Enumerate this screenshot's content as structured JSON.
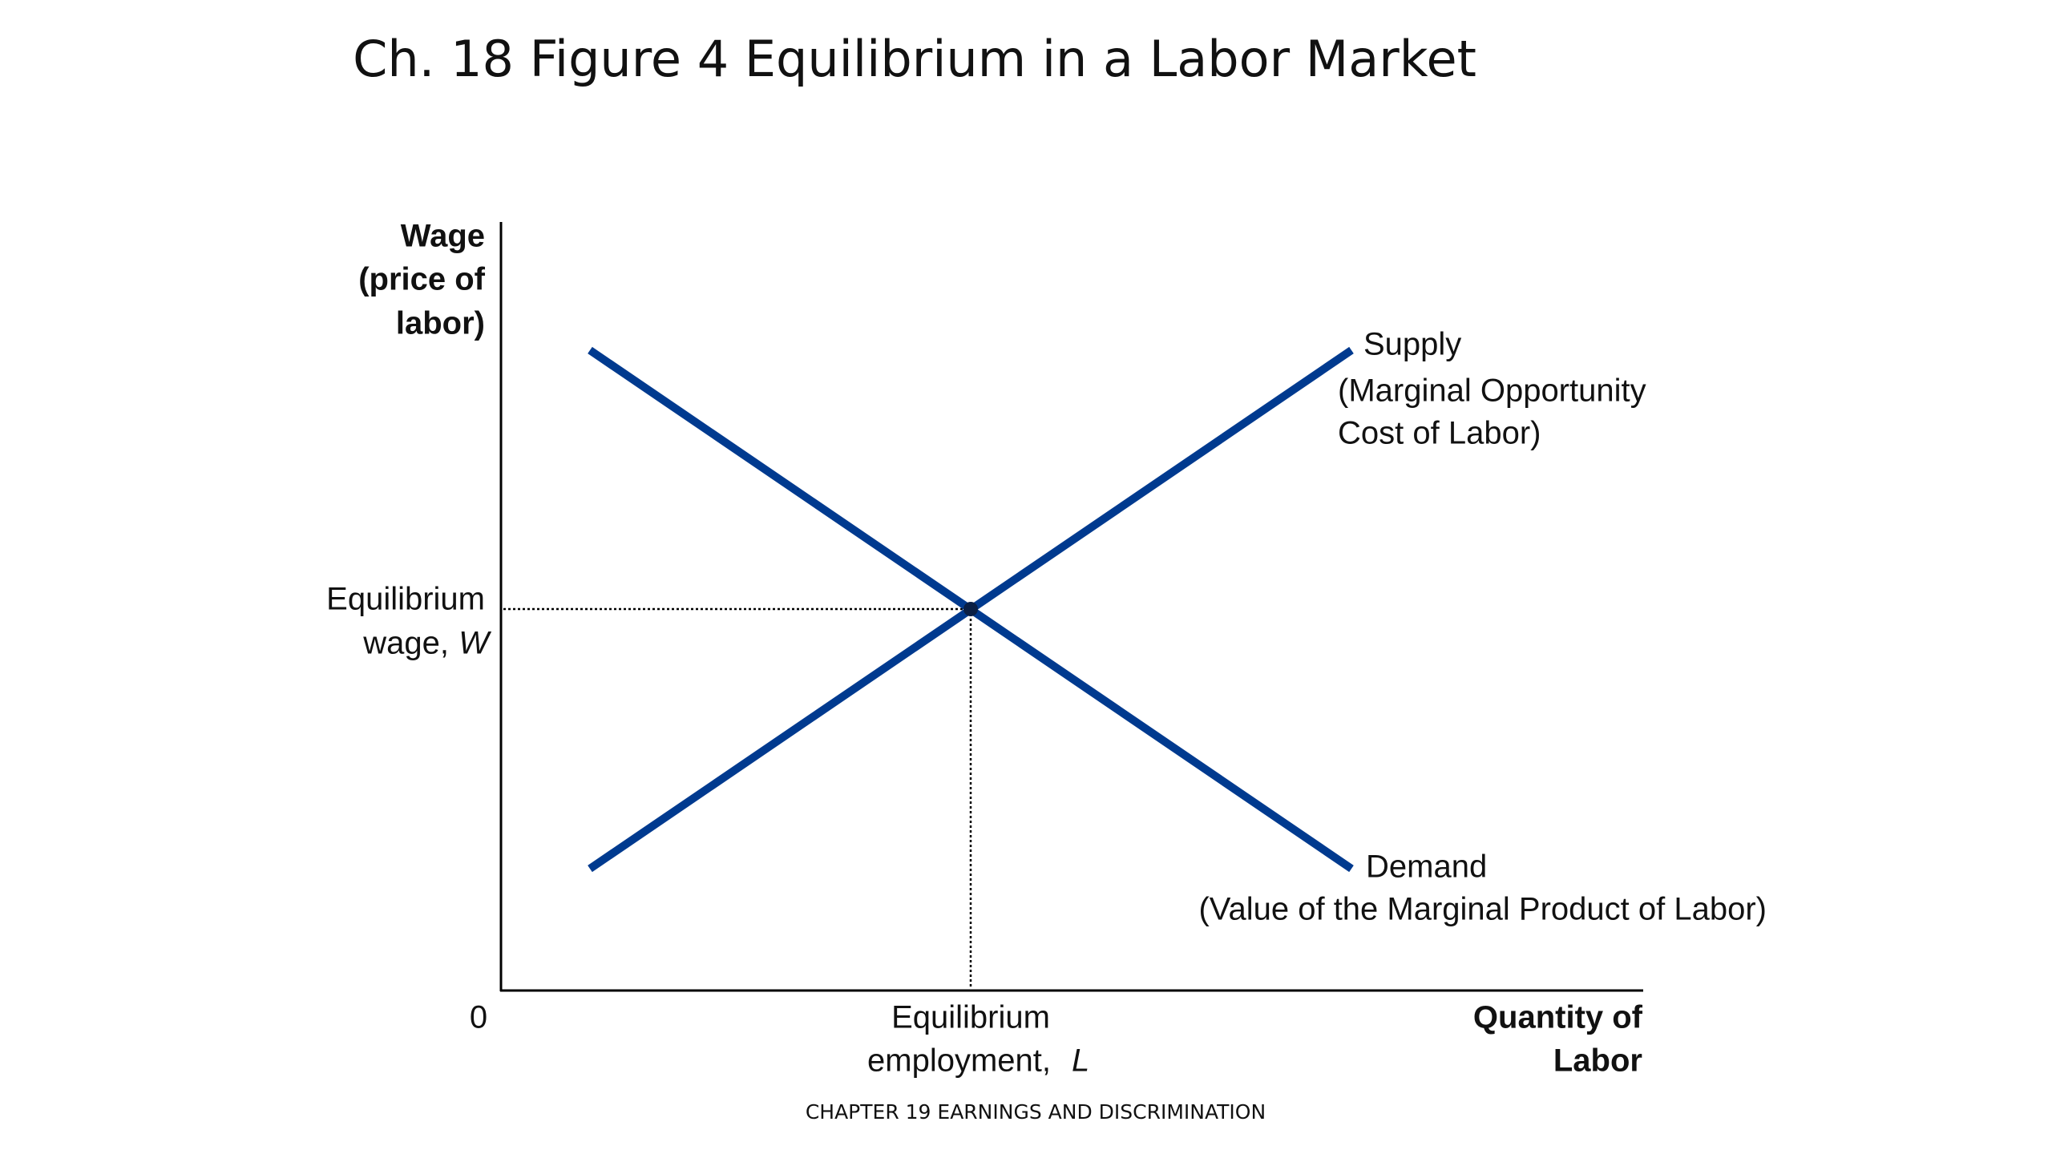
{
  "header": {
    "title": "Ch. 18 Figure 4 Equilibrium in a Labor Market"
  },
  "diagram": {
    "y_axis_label": [
      "Wage",
      "(price of",
      "labor)"
    ],
    "x_axis_label": [
      "Quantity of",
      "Labor"
    ],
    "origin": "0",
    "equilibrium_wage": {
      "lines": [
        "Equilibrium",
        "wage,"
      ],
      "variable": "W"
    },
    "equilibrium_employment": {
      "lines": [
        "Equilibrium",
        "employment,"
      ],
      "variable": "L"
    },
    "supply": {
      "name": "Supply",
      "lines": [
        "(Marginal Opportunity",
        "Cost of Labor)"
      ]
    },
    "demand": {
      "name": "Demand",
      "lines": [
        "(Value of the Marginal Product of Labor)"
      ]
    }
  },
  "footer": {
    "text": "CHAPTER 19 EARNINGS AND DISCRIMINATION"
  }
}
